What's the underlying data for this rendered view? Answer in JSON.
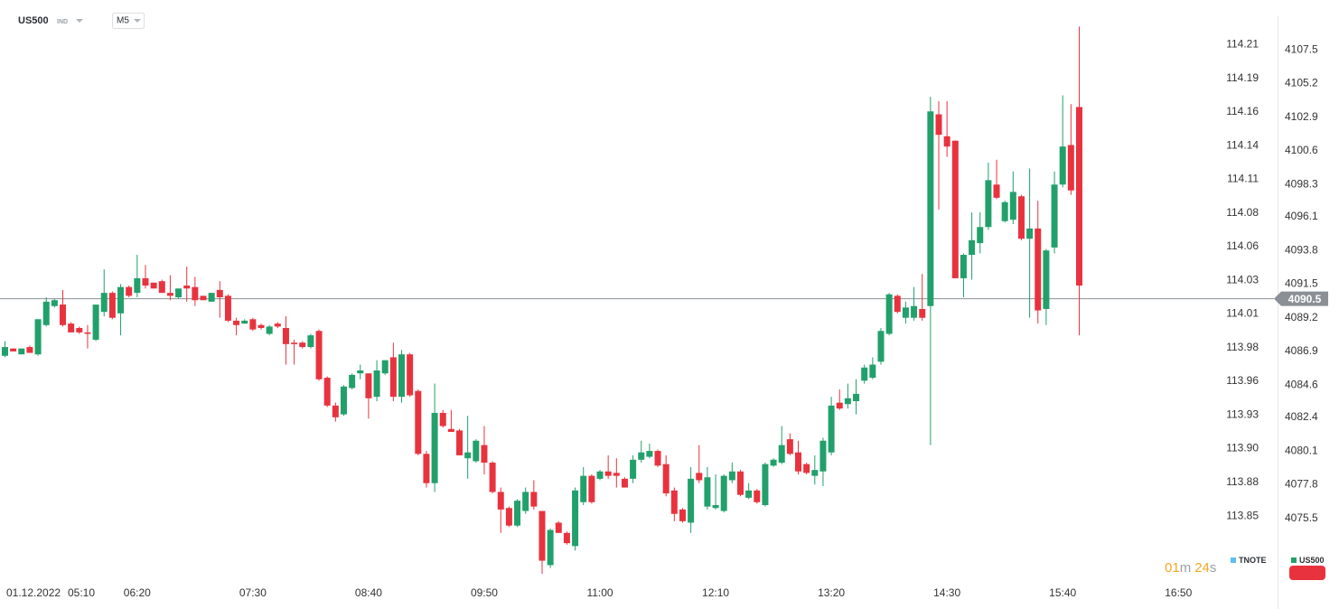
{
  "header": {
    "symbol": "US500",
    "market": "IND",
    "timeframe": "M5"
  },
  "chart_data": {
    "type": "candlestick",
    "x_date_label": "01.12.2022",
    "x": [
      "05:00",
      "05:05",
      "05:10",
      "05:15",
      "05:20",
      "05:25",
      "05:30",
      "05:35",
      "05:40",
      "05:45",
      "05:50",
      "05:55",
      "06:00",
      "06:05",
      "06:10",
      "06:15",
      "06:20",
      "06:25",
      "06:30",
      "06:35",
      "06:40",
      "06:45",
      "06:50",
      "06:55",
      "07:00",
      "07:05",
      "07:10",
      "07:15",
      "07:20",
      "07:25",
      "07:30",
      "07:35",
      "07:40",
      "07:45",
      "07:50",
      "07:55",
      "08:00",
      "08:05",
      "08:10",
      "08:15",
      "08:20",
      "08:25",
      "08:30",
      "08:35",
      "08:40",
      "08:45",
      "08:50",
      "08:55",
      "09:00",
      "09:05",
      "09:10",
      "09:15",
      "09:20",
      "09:25",
      "09:30",
      "09:35",
      "09:40",
      "09:45",
      "09:50",
      "09:55",
      "10:00",
      "10:05",
      "10:10",
      "10:15",
      "10:20",
      "10:25",
      "10:30",
      "10:35",
      "10:40",
      "10:45",
      "10:50",
      "10:55",
      "11:00",
      "11:05",
      "11:10",
      "11:15",
      "11:20",
      "11:25",
      "11:30",
      "11:35",
      "11:40",
      "11:45",
      "11:50",
      "11:55",
      "12:00",
      "12:05",
      "12:10",
      "12:15",
      "12:20",
      "12:25",
      "12:30",
      "12:35",
      "12:40",
      "12:45",
      "12:50",
      "12:55",
      "13:00",
      "13:05",
      "13:10",
      "13:15",
      "13:20",
      "13:25",
      "13:30",
      "13:35",
      "13:40",
      "13:45",
      "13:50",
      "13:55",
      "14:00",
      "14:05",
      "14:10",
      "14:15",
      "14:20",
      "14:25",
      "14:30",
      "14:35",
      "14:40",
      "14:45",
      "14:50",
      "14:55",
      "15:00",
      "15:05",
      "15:10",
      "15:15",
      "15:20",
      "15:25",
      "15:30",
      "15:35",
      "15:40",
      "15:45",
      "15:50"
    ],
    "xlim": [
      "04:57",
      "17:50"
    ],
    "xticks": [
      "05:10",
      "06:20",
      "07:30",
      "08:40",
      "09:50",
      "11:00",
      "12:10",
      "13:20",
      "14:30",
      "15:40",
      "16:50"
    ],
    "series": [
      {
        "name": "US500",
        "up_color": "#22a06b",
        "down_color": "#e8333f",
        "open": [
          4086.6,
          4087.1,
          4086.7,
          4087.2,
          4086.7,
          4088.7,
          4090.0,
          4090.1,
          4088.8,
          4088.5,
          4088.2,
          4087.7,
          4089.6,
          4090.9,
          4089.5,
          4091.3,
          4090.9,
          4091.9,
          4091.6,
          4091.7,
          4090.9,
          4090.6,
          4091.4,
          4091.3,
          4090.7,
          4090.3,
          4091.1,
          4090.7,
          4089.0,
          4088.8,
          4089.1,
          4088.7,
          4088.1,
          4088.8,
          4088.5,
          4087.5,
          4087.5,
          4087.2,
          4088.3,
          4085.1,
          4083.2,
          4082.6,
          4084.4,
          4085.4,
          4085.4,
          4083.8,
          4085.4,
          4086.5,
          4083.8,
          4086.7,
          4084.2,
          4079.9,
          4077.9,
          4082.7,
          4081.6,
          4081.5,
          4079.6,
          4079.4,
          4080.5,
          4079.3,
          4077.3,
          4076.2,
          4075.0,
          4076.0,
          4077.3,
          4076.0,
          4072.3,
          4075.2,
          4074.5,
          4073.6,
          4076.6,
          4078.4,
          4078.2,
          4078.7,
          4078.6,
          4078.2,
          4078.2,
          4079.5,
          4079.7,
          4080.1,
          4079.2,
          4077.4,
          4076.1,
          4075.2,
          4078.6,
          4076.3,
          4076.2,
          4076.0,
          4078.1,
          4078.7,
          4076.9,
          4077.4,
          4076.4,
          4079.1,
          4079.3,
          4080.9,
          4080.0,
          4079.2,
          4078.4,
          4078.7,
          4080.0,
          4083.4,
          4083.3,
          4083.5,
          4084.9,
          4085.1,
          4086.2,
          4088.1,
          4090.7,
          4089.2,
          4089.2,
          4089.8,
          4090.0,
          4103.1,
          4101.6,
          4101.3,
          4091.9,
          4093.5,
          4094.3,
          4095.4,
          4098.3,
          4095.8,
          4095.9,
          4097.5,
          4094.6,
          4095.3,
          4089.8,
          4094.0,
          4098.3,
          4101.0,
          4103.6
        ],
        "high": [
          4087.6,
          4087.1,
          4087.1,
          4087.3,
          4089.1,
          4090.6,
          4090.5,
          4091.1,
          4088.9,
          4088.6,
          4088.7,
          4090.1,
          4092.5,
          4091.0,
          4091.5,
          4091.4,
          4093.5,
          4092.8,
          4091.6,
          4091.8,
          4092.1,
          4091.2,
          4092.7,
          4092.0,
          4090.7,
          4090.9,
          4091.7,
          4090.8,
          4089.2,
          4089.1,
          4089.2,
          4088.8,
          4088.7,
          4088.9,
          4089.3,
          4087.7,
          4087.6,
          4088.1,
          4088.4,
          4085.2,
          4083.4,
          4084.6,
          4085.4,
          4086.0,
          4085.4,
          4086.3,
          4086.3,
          4087.5,
          4087.0,
          4086.8,
          4084.3,
          4080.1,
          4084.7,
          4082.9,
          4082.9,
          4081.6,
          4082.5,
          4080.9,
          4081.8,
          4079.4,
          4077.6,
          4076.3,
          4076.8,
          4077.6,
          4078.1,
          4076.0,
          4074.8,
          4075.3,
          4074.6,
          4077.6,
          4079.0,
          4078.5,
          4078.8,
          4079.8,
          4079.6,
          4078.3,
          4079.8,
          4080.8,
          4080.6,
          4080.2,
          4079.8,
          4077.6,
          4076.2,
          4079.0,
          4080.5,
          4079.0,
          4078.5,
          4078.5,
          4079.3,
          4078.8,
          4077.9,
          4077.5,
          4079.3,
          4079.6,
          4081.8,
          4081.3,
          4080.8,
          4079.3,
          4079.8,
          4081.0,
          4083.8,
          4084.3,
          4084.7,
          4085.0,
          4086.0,
          4086.5,
          4088.5,
          4090.9,
          4090.8,
          4090.3,
          4091.3,
          4092.2,
          4104.3,
          4104.0,
          4104.0,
          4101.3,
          4093.6,
          4096.4,
          4096.4,
          4099.8,
          4100.0,
          4097.2,
          4099.2,
          4097.6,
          4099.4,
          4097.2,
          4093.9,
          4099.2,
          4104.4,
          4103.8,
          4109.1
        ],
        "low": [
          4086.5,
          4086.9,
          4086.7,
          4086.8,
          4086.6,
          4088.6,
          4089.9,
          4088.6,
          4088.2,
          4088.1,
          4087.1,
          4087.6,
          4089.3,
          4089.1,
          4088.0,
          4090.6,
          4090.6,
          4091.2,
          4091.2,
          4090.9,
          4090.4,
          4090.5,
          4090.3,
          4090.0,
          4090.4,
          4090.3,
          4089.2,
          4088.9,
          4088.0,
          4088.8,
          4088.3,
          4088.4,
          4088.0,
          4088.5,
          4086.0,
          4086.0,
          4087.1,
          4087.1,
          4084.9,
          4083.1,
          4082.1,
          4082.5,
          4084.3,
          4085.0,
          4082.3,
          4083.5,
          4085.3,
          4083.5,
          4083.4,
          4083.8,
          4079.8,
          4077.6,
          4077.3,
          4081.7,
          4081.4,
          4079.8,
          4078.2,
          4079.3,
          4078.5,
          4077.2,
          4074.5,
          4074.9,
          4074.9,
          4075.8,
          4076.1,
          4071.7,
          4072.1,
          4074.5,
          4073.7,
          4073.3,
          4076.4,
          4076.5,
          4078.1,
          4078.2,
          4077.6,
          4077.6,
          4077.9,
          4079.3,
          4079.6,
          4079.0,
          4077.0,
          4075.3,
          4075.2,
          4074.5,
          4077.9,
          4076.1,
          4076.1,
          4075.9,
          4077.9,
          4077.0,
          4076.8,
          4076.5,
          4076.3,
          4079.0,
          4079.2,
          4079.8,
          4078.5,
          4078.5,
          4077.8,
          4077.7,
          4079.8,
          4082.9,
          4083.0,
          4082.6,
          4084.7,
          4085.0,
          4086.0,
          4088.0,
          4089.5,
          4088.8,
          4089.0,
          4089.0,
          4080.5,
          4096.6,
          4100.2,
          4091.9,
          4090.6,
          4091.8,
          4093.6,
          4095.2,
          4097.3,
          4095.7,
          4095.6,
          4094.5,
          4089.2,
          4088.8,
          4088.7,
          4093.6,
          4098.1,
          4097.6,
          4088.0
        ],
        "close": [
          4087.2,
          4086.9,
          4087.1,
          4086.8,
          4089.1,
          4090.3,
          4090.4,
          4088.7,
          4088.2,
          4088.2,
          4088.1,
          4090.1,
          4090.9,
          4089.2,
          4091.3,
          4090.7,
          4091.9,
          4091.4,
          4091.2,
          4090.9,
          4090.7,
          4091.2,
          4091.2,
          4090.4,
          4090.4,
          4090.9,
          4090.6,
          4089.0,
          4088.7,
          4089.0,
          4088.4,
          4088.5,
          4088.6,
          4088.6,
          4087.4,
          4087.4,
          4087.2,
          4088.0,
          4085.0,
          4083.2,
          4082.4,
          4084.5,
          4085.3,
          4085.6,
          4083.7,
          4085.6,
          4086.3,
          4083.8,
          4086.7,
          4083.9,
          4079.9,
          4077.9,
          4082.7,
          4081.8,
          4081.4,
          4079.8,
          4080.0,
          4080.8,
          4079.3,
          4077.3,
          4076.1,
          4075.0,
          4076.7,
          4077.3,
          4076.3,
          4072.6,
          4074.7,
          4074.5,
          4073.8,
          4077.4,
          4078.4,
          4076.6,
          4078.7,
          4078.4,
          4078.4,
          4077.6,
          4079.5,
          4080.0,
          4080.1,
          4079.1,
          4077.2,
          4075.8,
          4075.3,
          4078.2,
          4078.1,
          4078.3,
          4076.4,
          4078.4,
          4078.7,
          4077.1,
          4077.4,
          4076.6,
          4079.2,
          4079.5,
          4080.5,
          4079.9,
          4078.7,
          4078.6,
          4078.8,
          4080.8,
          4083.2,
          4083.0,
          4083.7,
          4084.0,
          4085.8,
          4086.0,
          4088.3,
          4090.8,
          4089.6,
          4089.9,
          4090.0,
          4089.2,
          4103.3,
          4101.7,
          4100.9,
          4091.9,
          4093.5,
          4094.5,
          4095.4,
          4098.6,
          4097.4,
          4097.1,
          4097.8,
          4094.6,
          4095.3,
          4089.7,
          4093.8,
          4098.3,
          4100.9,
          4097.9,
          4091.4
        ]
      }
    ],
    "ylim": [
      4071.4,
      4109.8
    ],
    "yticks": [
      4075.5,
      4077.8,
      4080.1,
      4082.4,
      4084.6,
      4086.9,
      4089.2,
      4091.5,
      4093.8,
      4096.1,
      4098.3,
      4100.6,
      4102.9,
      4105.2,
      4107.5
    ],
    "y2_series": {
      "name": "TNOTE",
      "color": "#5bc0eb"
    },
    "y2lim": [
      113.8042,
      114.2357
    ],
    "y2ticks": [
      {
        "value": 113.852,
        "label": "113.85"
      },
      {
        "value": 113.8779,
        "label": "113.88"
      },
      {
        "value": 113.9037,
        "label": "113.90"
      },
      {
        "value": 113.9296,
        "label": "113.93"
      },
      {
        "value": 113.9554,
        "label": "113.96"
      },
      {
        "value": 113.9813,
        "label": "113.98"
      },
      {
        "value": 114.0071,
        "label": "114.01"
      },
      {
        "value": 114.033,
        "label": "114.03"
      },
      {
        "value": 114.0589,
        "label": "114.06"
      },
      {
        "value": 114.0847,
        "label": "114.08"
      },
      {
        "value": 114.1106,
        "label": "114.11"
      },
      {
        "value": 114.1364,
        "label": "114.14"
      },
      {
        "value": 114.1623,
        "label": "114.16"
      },
      {
        "value": 114.1881,
        "label": "114.19"
      },
      {
        "value": 114.214,
        "label": "114.21"
      }
    ],
    "grid": false,
    "current_price": 4090.5,
    "current_price_color": "#8a9096",
    "countdown": {
      "minutes": "01",
      "minutes_unit": "m",
      "seconds": "24",
      "seconds_unit": "s"
    }
  }
}
